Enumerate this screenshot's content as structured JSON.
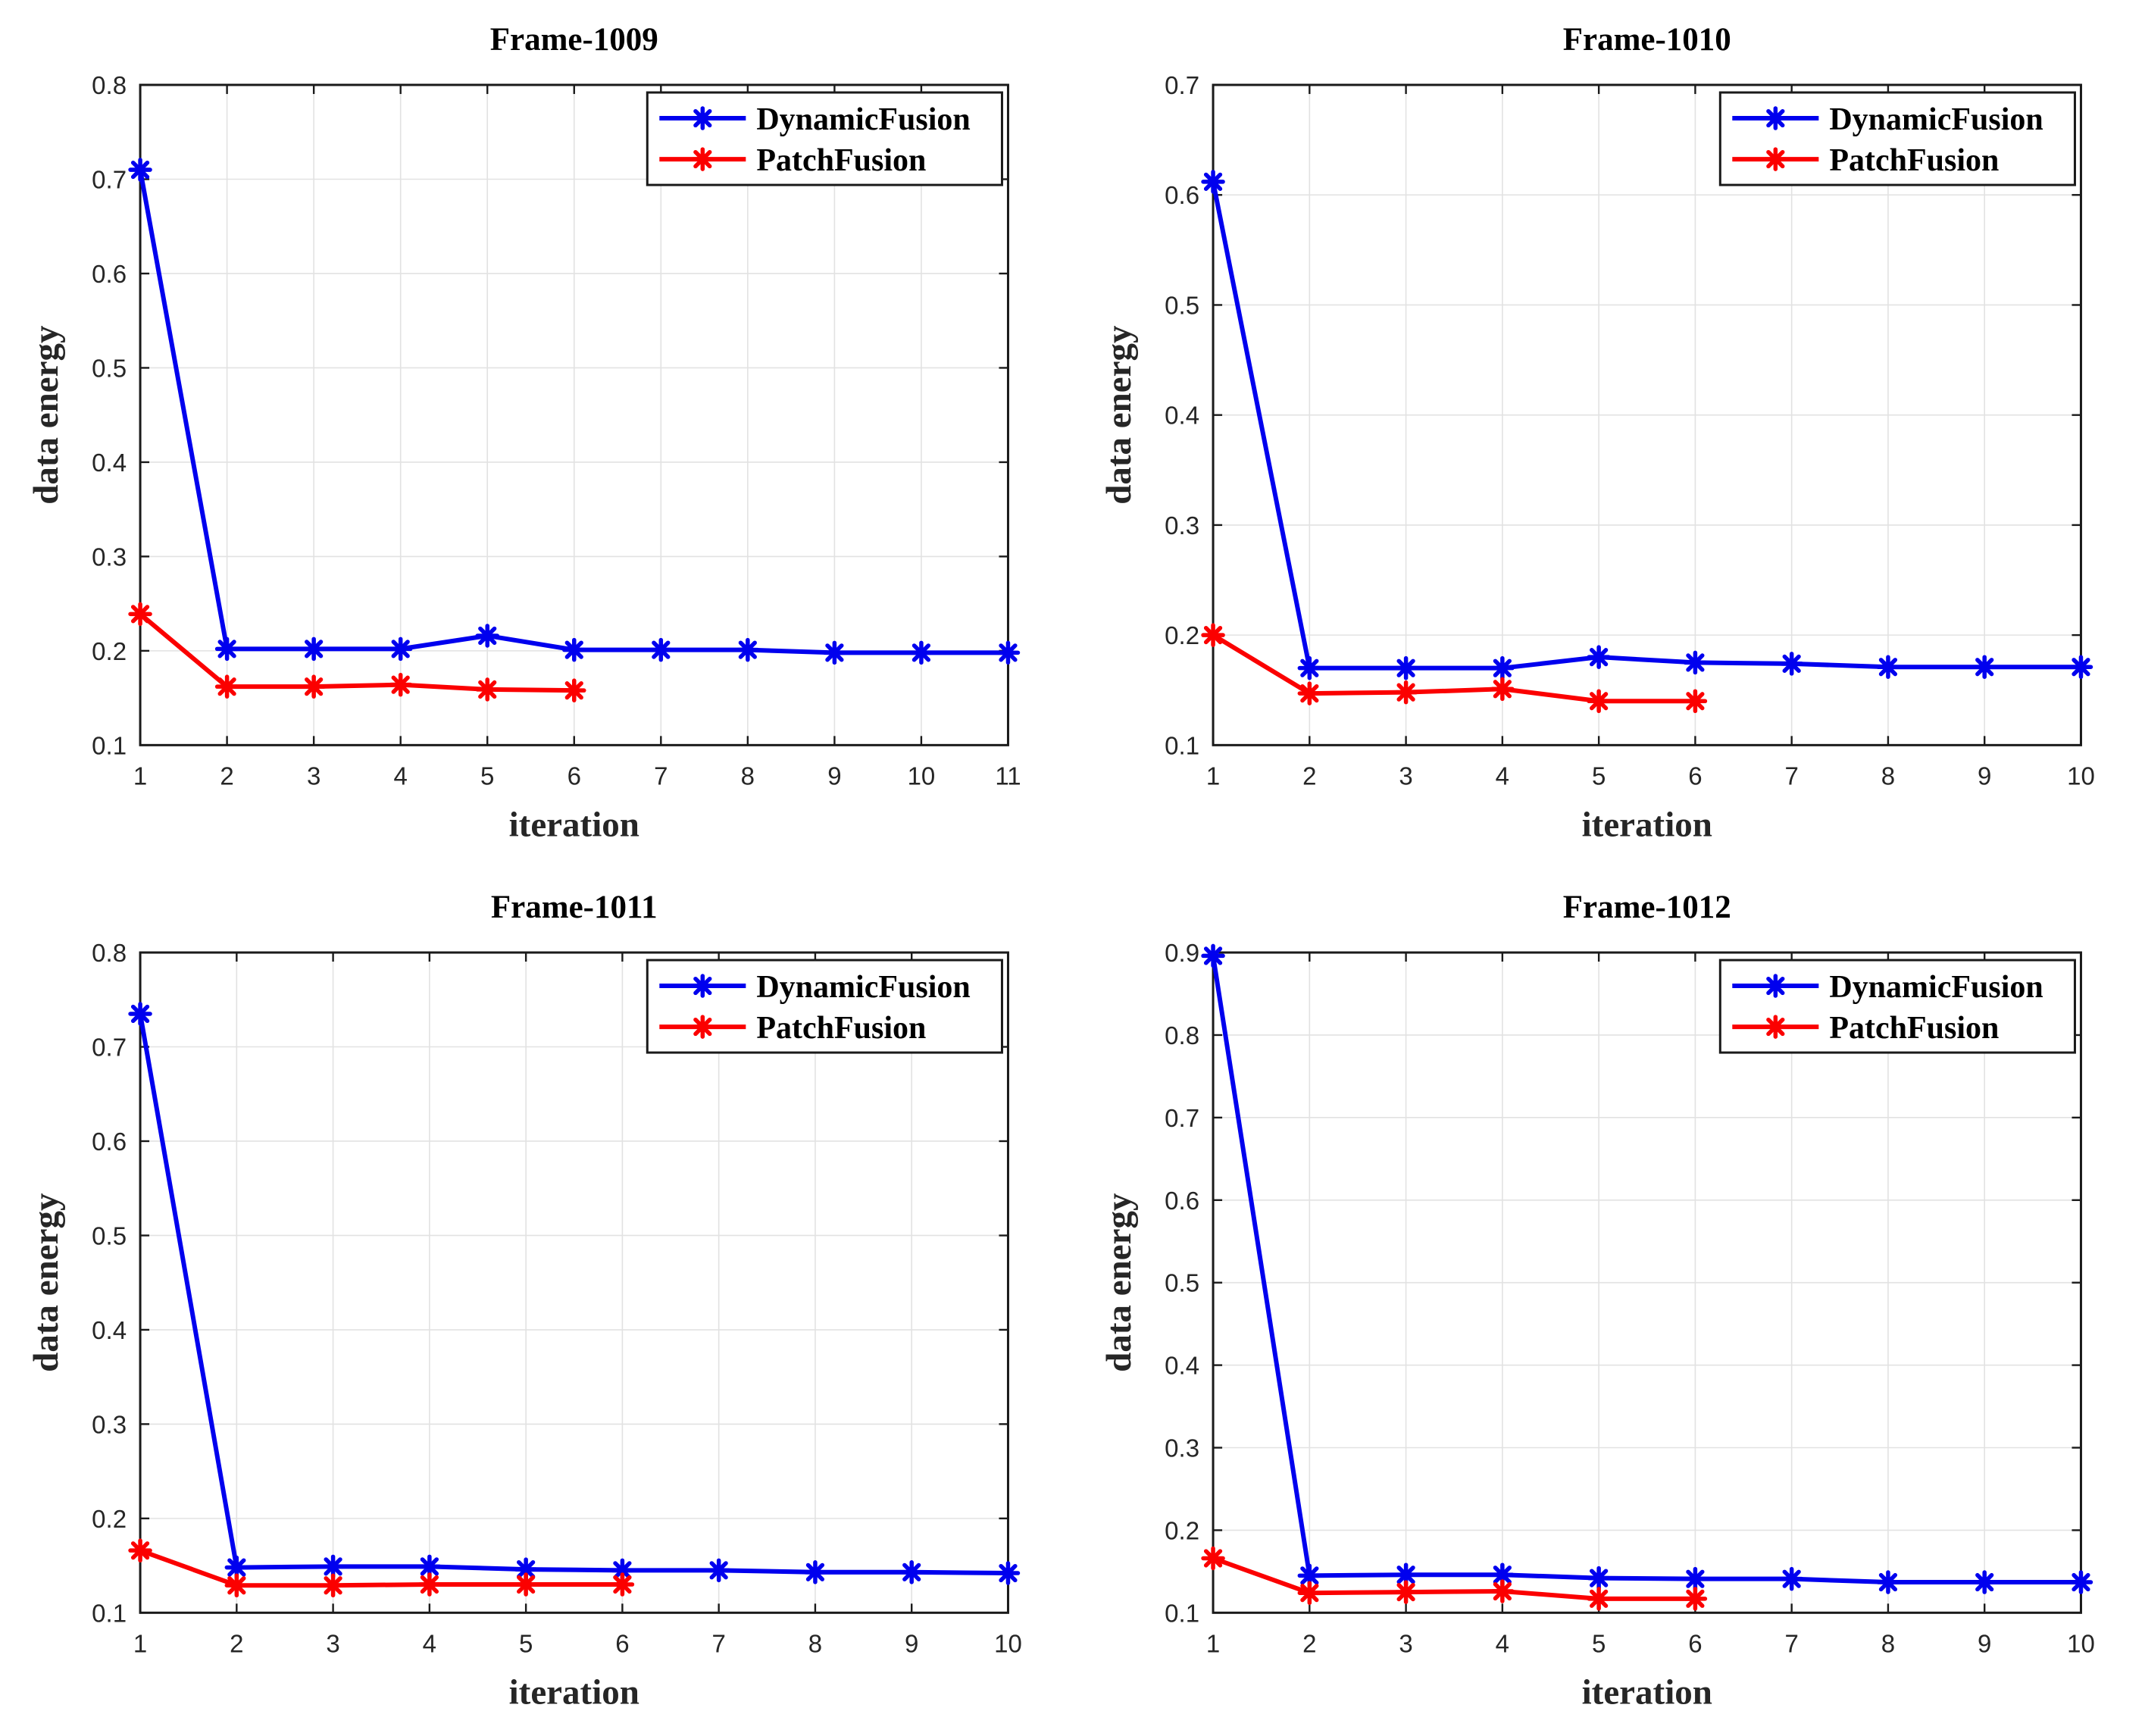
{
  "figure": {
    "background": "#ffffff",
    "axis_color": "#1a1a1a",
    "grid_color": "#e2e2e2",
    "tick_label_color": "#262626",
    "text_color": "#000000",
    "legend_border_color": "#1a1a1a",
    "legend_background": "#ffffff",
    "marker_style": "asterisk-icon",
    "series_palette": {
      "DynamicFusion": "#0000ee",
      "PatchFusion": "#fb0000"
    }
  },
  "chart_data": [
    {
      "type": "line",
      "title": "Frame-1009",
      "xlabel": "iteration",
      "ylabel": "data energy",
      "xlim": [
        1,
        11
      ],
      "ylim": [
        0.1,
        0.8
      ],
      "xticks": [
        1,
        2,
        3,
        4,
        5,
        6,
        7,
        8,
        9,
        10,
        11
      ],
      "yticks": [
        0.1,
        0.2,
        0.3,
        0.4,
        0.5,
        0.6,
        0.7,
        0.8
      ],
      "grid": true,
      "legend": {
        "position": "northeast",
        "entries": [
          "DynamicFusion",
          "PatchFusion"
        ]
      },
      "series": [
        {
          "name": "DynamicFusion",
          "color": "#0000ee",
          "marker": "asterisk",
          "x": [
            1,
            2,
            3,
            4,
            5,
            6,
            7,
            8,
            9,
            10,
            11
          ],
          "y": [
            0.71,
            0.202,
            0.202,
            0.202,
            0.216,
            0.201,
            0.201,
            0.201,
            0.198,
            0.198,
            0.198
          ]
        },
        {
          "name": "PatchFusion",
          "color": "#fb0000",
          "marker": "asterisk",
          "x": [
            1,
            2,
            3,
            4,
            5,
            6
          ],
          "y": [
            0.239,
            0.162,
            0.162,
            0.164,
            0.159,
            0.158
          ]
        }
      ]
    },
    {
      "type": "line",
      "title": "Frame-1010",
      "xlabel": "iteration",
      "ylabel": "data energy",
      "xlim": [
        1,
        10
      ],
      "ylim": [
        0.1,
        0.7
      ],
      "xticks": [
        1,
        2,
        3,
        4,
        5,
        6,
        7,
        8,
        9,
        10
      ],
      "yticks": [
        0.1,
        0.2,
        0.3,
        0.4,
        0.5,
        0.6,
        0.7
      ],
      "grid": true,
      "legend": {
        "position": "northeast",
        "entries": [
          "DynamicFusion",
          "PatchFusion"
        ]
      },
      "series": [
        {
          "name": "DynamicFusion",
          "color": "#0000ee",
          "marker": "asterisk",
          "x": [
            1,
            2,
            3,
            4,
            5,
            6,
            7,
            8,
            9,
            10
          ],
          "y": [
            0.612,
            0.17,
            0.17,
            0.17,
            0.18,
            0.175,
            0.174,
            0.171,
            0.171,
            0.171
          ]
        },
        {
          "name": "PatchFusion",
          "color": "#fb0000",
          "marker": "asterisk",
          "x": [
            1,
            2,
            3,
            4,
            5,
            6
          ],
          "y": [
            0.2,
            0.147,
            0.148,
            0.151,
            0.14,
            0.14
          ]
        }
      ]
    },
    {
      "type": "line",
      "title": "Frame-1011",
      "xlabel": "iteration",
      "ylabel": "data energy",
      "xlim": [
        1,
        10
      ],
      "ylim": [
        0.1,
        0.8
      ],
      "xticks": [
        1,
        2,
        3,
        4,
        5,
        6,
        7,
        8,
        9,
        10
      ],
      "yticks": [
        0.1,
        0.2,
        0.3,
        0.4,
        0.5,
        0.6,
        0.7,
        0.8
      ],
      "grid": true,
      "legend": {
        "position": "northeast",
        "entries": [
          "DynamicFusion",
          "PatchFusion"
        ]
      },
      "series": [
        {
          "name": "DynamicFusion",
          "color": "#0000ee",
          "marker": "asterisk",
          "x": [
            1,
            2,
            3,
            4,
            5,
            6,
            7,
            8,
            9,
            10
          ],
          "y": [
            0.735,
            0.148,
            0.149,
            0.149,
            0.146,
            0.145,
            0.145,
            0.143,
            0.143,
            0.142
          ]
        },
        {
          "name": "PatchFusion",
          "color": "#fb0000",
          "marker": "asterisk",
          "x": [
            1,
            2,
            3,
            4,
            5,
            6
          ],
          "y": [
            0.166,
            0.129,
            0.129,
            0.13,
            0.13,
            0.13
          ]
        }
      ]
    },
    {
      "type": "line",
      "title": "Frame-1012",
      "xlabel": "iteration",
      "ylabel": "data energy",
      "xlim": [
        1,
        10
      ],
      "ylim": [
        0.1,
        0.9
      ],
      "xticks": [
        1,
        2,
        3,
        4,
        5,
        6,
        7,
        8,
        9,
        10
      ],
      "yticks": [
        0.1,
        0.2,
        0.3,
        0.4,
        0.5,
        0.6,
        0.7,
        0.8,
        0.9
      ],
      "grid": true,
      "legend": {
        "position": "northeast",
        "entries": [
          "DynamicFusion",
          "PatchFusion"
        ]
      },
      "series": [
        {
          "name": "DynamicFusion",
          "color": "#0000ee",
          "marker": "asterisk",
          "x": [
            1,
            2,
            3,
            4,
            5,
            6,
            7,
            8,
            9,
            10
          ],
          "y": [
            0.896,
            0.145,
            0.146,
            0.146,
            0.142,
            0.141,
            0.141,
            0.137,
            0.137,
            0.137
          ]
        },
        {
          "name": "PatchFusion",
          "color": "#fb0000",
          "marker": "asterisk",
          "x": [
            1,
            2,
            3,
            4,
            5,
            6
          ],
          "y": [
            0.166,
            0.124,
            0.125,
            0.126,
            0.117,
            0.117
          ]
        }
      ]
    }
  ]
}
